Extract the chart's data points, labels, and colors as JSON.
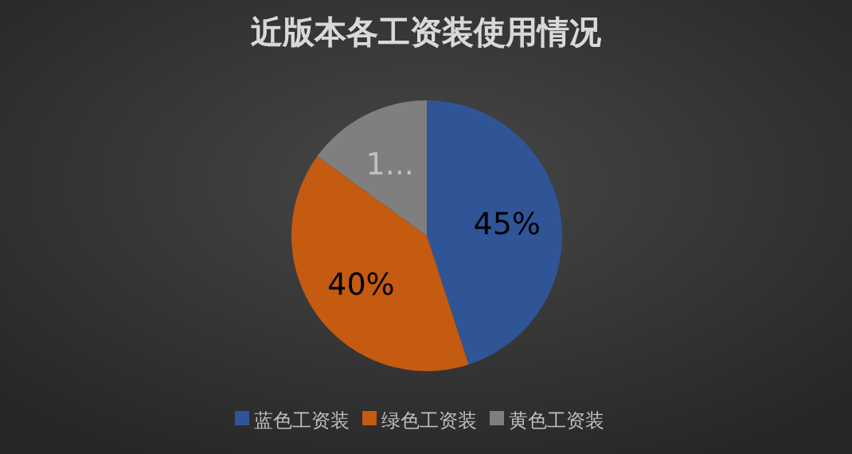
{
  "chart_data": {
    "type": "pie",
    "title": "近版本各工资装使用情况",
    "categories": [
      "蓝色工资装",
      "绿色工资装",
      "黄色工资装"
    ],
    "values": [
      45,
      40,
      15
    ],
    "colors": [
      "#2f5597",
      "#c55a11",
      "#7f7f7f"
    ],
    "value_labels": [
      "45%",
      "40%",
      "1..."
    ],
    "legend": "bottom"
  }
}
